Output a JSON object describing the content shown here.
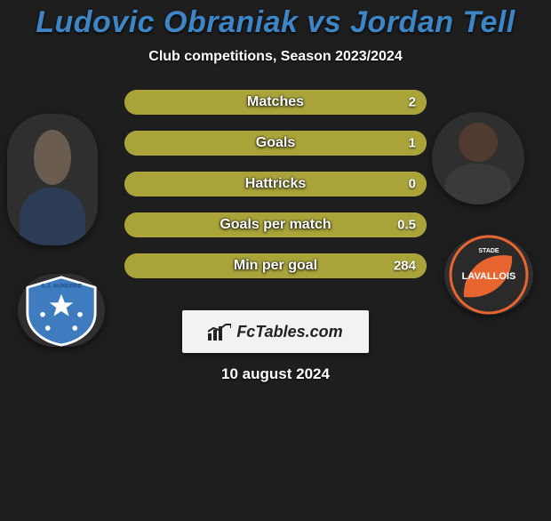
{
  "title": {
    "player1": "Ludovic Obraniak",
    "vs": "vs",
    "player2": "Jordan Tell",
    "color": "#3e85c6"
  },
  "subtitle": "Club competitions, Season 2023/2024",
  "stats": [
    {
      "label": "Matches",
      "left_value": "",
      "right_value": "2",
      "left_pct": 0,
      "right_pct": 100
    },
    {
      "label": "Goals",
      "left_value": "",
      "right_value": "1",
      "left_pct": 0,
      "right_pct": 100
    },
    {
      "label": "Hattricks",
      "left_value": "",
      "right_value": "0",
      "left_pct": 0,
      "right_pct": 100
    },
    {
      "label": "Goals per match",
      "left_value": "",
      "right_value": "0.5",
      "left_pct": 0,
      "right_pct": 100
    },
    {
      "label": "Min per goal",
      "left_value": "",
      "right_value": "284",
      "left_pct": 0,
      "right_pct": 100
    }
  ],
  "colors": {
    "bar_left_fill": "#aaaaaa",
    "bar_right_fill": "#a9a33a",
    "bar_outline": "#a9a33a",
    "background": "#1e1e1e",
    "text": "#ffffff"
  },
  "brand": {
    "text": "FcTables.com"
  },
  "date": "10 august 2024",
  "player1": {
    "name": "Ludovic Obraniak",
    "club_primary_color": "#3f7bbf",
    "club_secondary_color": "#ffffff",
    "club_label": "A.J. AUXERRE"
  },
  "player2": {
    "name": "Jordan Tell",
    "club_primary_color": "#e9652f",
    "club_secondary_color": "#2a2a2a",
    "club_label": "LAVALLOIS"
  }
}
